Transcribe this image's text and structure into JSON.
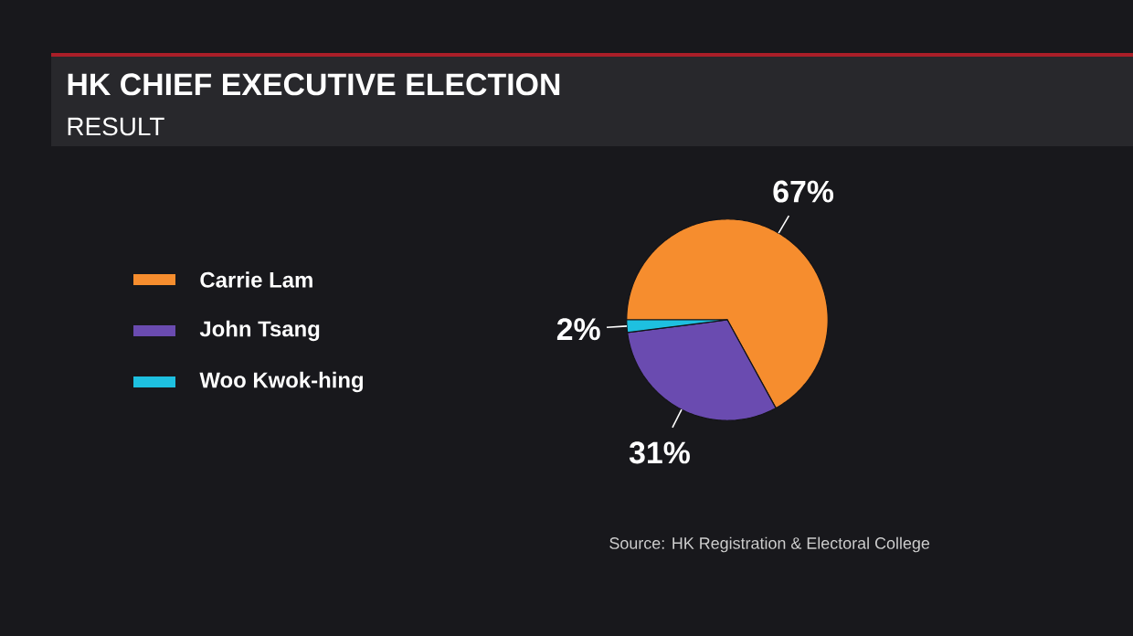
{
  "chart_data": {
    "type": "pie",
    "title": "HK CHIEF EXECUTIVE ELECTION",
    "subtitle": "RESULT",
    "categories": [
      "Carrie Lam",
      "John Tsang",
      "Woo Kwok-hing"
    ],
    "values": [
      67,
      31,
      2
    ],
    "colors": [
      "#f68d2e",
      "#6a4bb0",
      "#1ec0e0"
    ],
    "value_labels": [
      "67%",
      "31%",
      "2%"
    ],
    "legend": "left",
    "annotations": [
      "Source: HK Registration & Electoral College"
    ]
  }
}
